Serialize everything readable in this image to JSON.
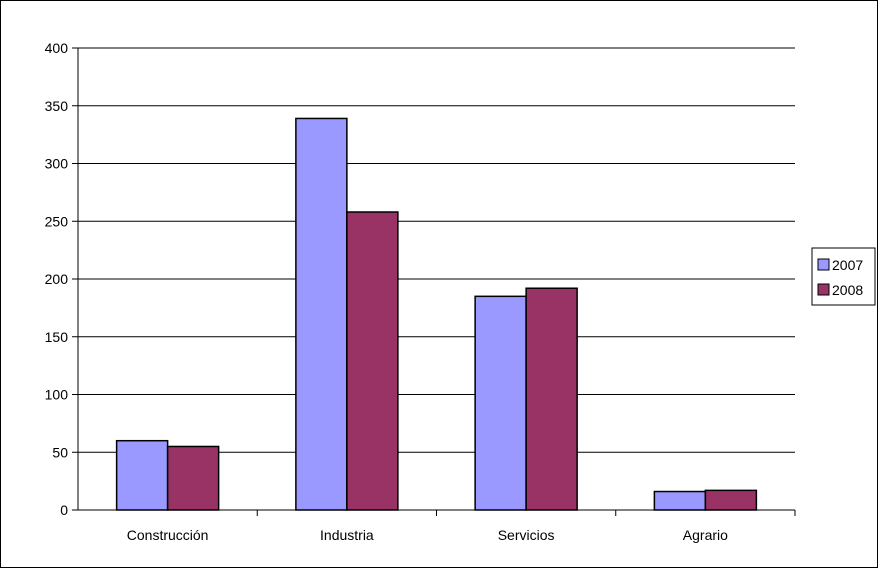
{
  "chart_data": {
    "type": "bar",
    "categories": [
      "Construcción",
      "Industria",
      "Servicios",
      "Agrario"
    ],
    "series": [
      {
        "name": "2007",
        "values": [
          60,
          339,
          185,
          16
        ],
        "color": "#9999ff"
      },
      {
        "name": "2008",
        "values": [
          55,
          258,
          192,
          17
        ],
        "color": "#993366"
      }
    ],
    "ylim": [
      0,
      400
    ],
    "yticks": [
      0,
      50,
      100,
      150,
      200,
      250,
      300,
      350,
      400
    ],
    "grid": true,
    "legend_position": "right"
  }
}
